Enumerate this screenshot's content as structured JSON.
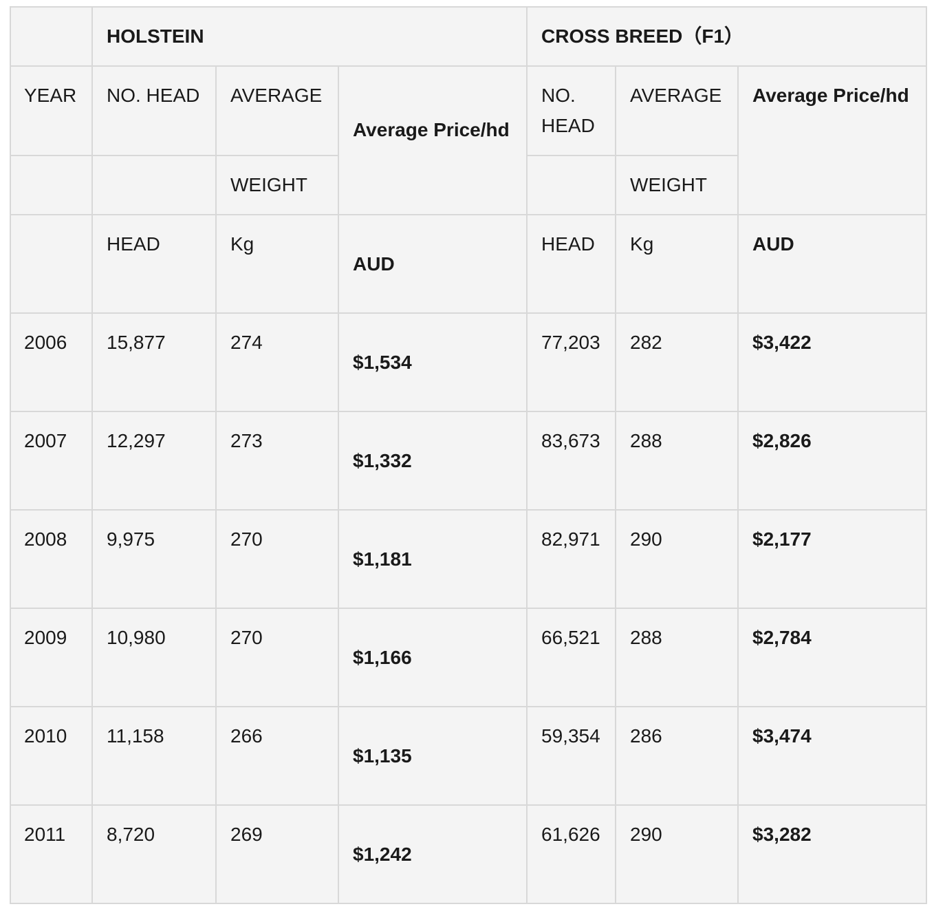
{
  "groups": {
    "holstein": "HOLSTEIN",
    "crossbreed": "CROSS BREED（F1）"
  },
  "header": {
    "year": "YEAR",
    "no_head": "NO. HEAD",
    "average": "AVERAGE",
    "weight": "WEIGHT",
    "avg_price": "Average Price/hd",
    "cross_no_head": "NO. HEAD",
    "head_unit": "HEAD",
    "kg_unit": "Kg",
    "aud_unit": "AUD"
  },
  "rows": [
    {
      "year": "2006",
      "h_head": "15,877",
      "h_kg": "274",
      "h_price": "$1,534",
      "c_head": "77,203",
      "c_kg": "282",
      "c_price": "$3,422"
    },
    {
      "year": "2007",
      "h_head": "12,297",
      "h_kg": "273",
      "h_price": "$1,332",
      "c_head": "83,673",
      "c_kg": "288",
      "c_price": "$2,826"
    },
    {
      "year": "2008",
      "h_head": "9,975",
      "h_kg": "270",
      "h_price": "$1,181",
      "c_head": "82,971",
      "c_kg": "290",
      "c_price": "$2,177"
    },
    {
      "year": "2009",
      "h_head": "10,980",
      "h_kg": "270",
      "h_price": "$1,166",
      "c_head": "66,521",
      "c_kg": "288",
      "c_price": "$2,784"
    },
    {
      "year": "2010",
      "h_head": "11,158",
      "h_kg": "266",
      "h_price": "$1,135",
      "c_head": "59,354",
      "c_kg": "286",
      "c_price": "$3,474"
    },
    {
      "year": "2011",
      "h_head": "8,720",
      "h_kg": "269",
      "h_price": "$1,242",
      "c_head": "61,626",
      "c_kg": "290",
      "c_price": "$3,282"
    }
  ]
}
